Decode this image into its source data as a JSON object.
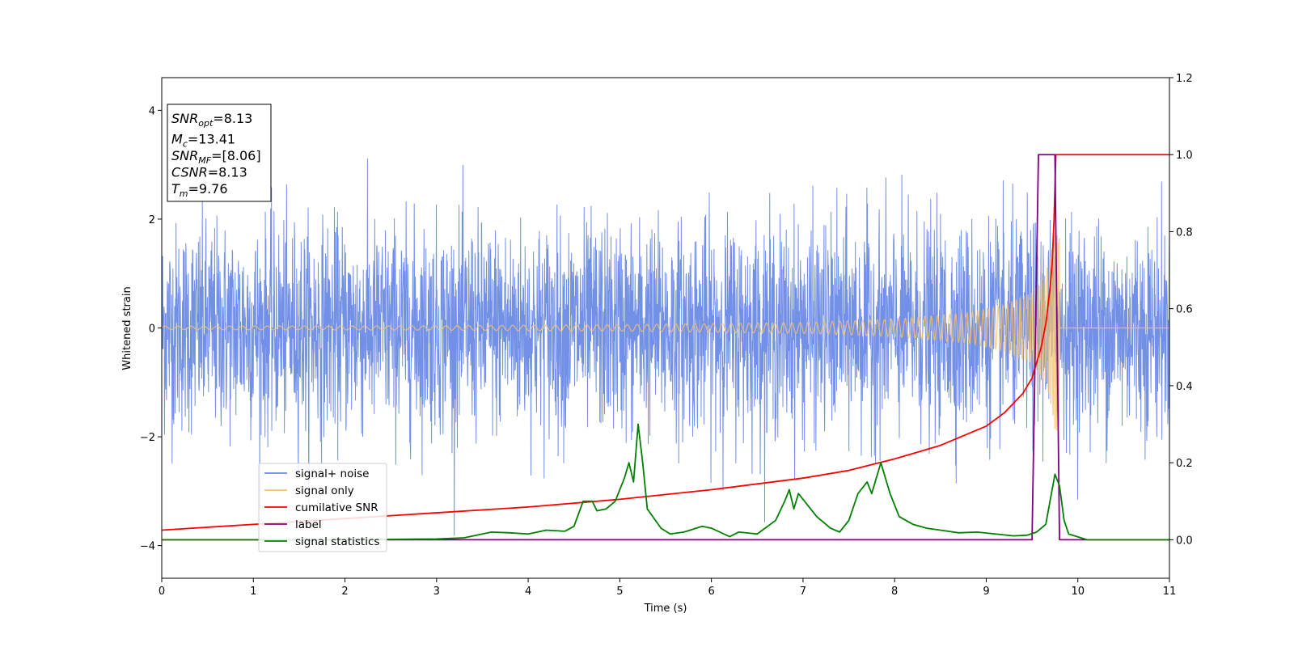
{
  "chart_data": {
    "type": "line",
    "xlabel": "Time (s)",
    "ylabel": "Whitened strain",
    "xlim": [
      0,
      11
    ],
    "ylim": [
      -4.6,
      4.6
    ],
    "y2lim": [
      -0.1,
      1.2
    ],
    "x_ticks": [
      "0",
      "1",
      "2",
      "3",
      "4",
      "5",
      "6",
      "7",
      "8",
      "9",
      "10",
      "11"
    ],
    "y_ticks": [
      "4",
      "2",
      "0",
      "−2",
      "−4"
    ],
    "y_tick_values": [
      4,
      2,
      0,
      -2,
      -4
    ],
    "y2_ticks": [
      "1.2",
      "1.0",
      "0.8",
      "0.6",
      "0.4",
      "0.2",
      "0.0"
    ],
    "y2_tick_values": [
      1.2,
      1.0,
      0.8,
      0.6,
      0.4,
      0.2,
      0.0
    ],
    "grid": false,
    "legend_position": "lower-left",
    "info_box": {
      "lines": [
        {
          "base": "SNR",
          "sub": "opt",
          "value": "=8.13"
        },
        {
          "base": "M",
          "sub": "c",
          "value": "=13.41"
        },
        {
          "base": "SNR",
          "sub": "MF",
          "value": "=[8.06]"
        },
        {
          "base": "CSNR",
          "sub": "",
          "value": "=8.13"
        },
        {
          "base": "T",
          "sub": "m",
          "value": "=9.76"
        }
      ]
    },
    "series": [
      {
        "name": "signal+ noise",
        "axis": "left",
        "color": "#6b8ae6",
        "kind": "noise",
        "approx_std": 0.95,
        "approx_extremes": {
          "max": 4.05,
          "min": -4.15
        }
      },
      {
        "name": "signal only",
        "axis": "left",
        "color": "#f5c26b",
        "kind": "chirp",
        "merger_time": 9.76,
        "end_time": 9.8,
        "envelope": [
          [
            0,
            0.03
          ],
          [
            3,
            0.04
          ],
          [
            5,
            0.06
          ],
          [
            7,
            0.1
          ],
          [
            8,
            0.16
          ],
          [
            8.8,
            0.28
          ],
          [
            9.2,
            0.42
          ],
          [
            9.5,
            0.65
          ],
          [
            9.65,
            1.0
          ],
          [
            9.72,
            1.5
          ],
          [
            9.76,
            2.0
          ],
          [
            9.78,
            1.7
          ]
        ]
      },
      {
        "name": "cumilative SNR",
        "axis": "right",
        "color": "#ff0000",
        "points": [
          [
            0,
            0.025
          ],
          [
            1,
            0.04
          ],
          [
            2,
            0.055
          ],
          [
            3,
            0.07
          ],
          [
            4,
            0.085
          ],
          [
            5,
            0.105
          ],
          [
            6,
            0.13
          ],
          [
            7,
            0.16
          ],
          [
            7.5,
            0.18
          ],
          [
            8,
            0.21
          ],
          [
            8.5,
            0.245
          ],
          [
            9,
            0.295
          ],
          [
            9.2,
            0.33
          ],
          [
            9.4,
            0.38
          ],
          [
            9.5,
            0.42
          ],
          [
            9.6,
            0.5
          ],
          [
            9.65,
            0.56
          ],
          [
            9.7,
            0.66
          ],
          [
            9.72,
            0.72
          ],
          [
            9.74,
            0.83
          ],
          [
            9.76,
            1.0
          ],
          [
            11,
            1.0
          ]
        ]
      },
      {
        "name": "label",
        "axis": "right",
        "color": "#800080",
        "points": [
          [
            0,
            0.0
          ],
          [
            9.5,
            0.0
          ],
          [
            9.57,
            1.0
          ],
          [
            9.75,
            1.0
          ],
          [
            9.8,
            0.0
          ],
          [
            11,
            0.0
          ]
        ]
      },
      {
        "name": "signal statistics",
        "axis": "right",
        "color": "#008000",
        "points": [
          [
            0,
            0.0
          ],
          [
            1,
            0.0
          ],
          [
            2,
            0.0
          ],
          [
            3,
            0.002
          ],
          [
            3.3,
            0.005
          ],
          [
            3.6,
            0.02
          ],
          [
            3.8,
            0.018
          ],
          [
            4.0,
            0.015
          ],
          [
            4.2,
            0.025
          ],
          [
            4.4,
            0.022
          ],
          [
            4.5,
            0.035
          ],
          [
            4.6,
            0.1
          ],
          [
            4.7,
            0.1
          ],
          [
            4.75,
            0.075
          ],
          [
            4.85,
            0.08
          ],
          [
            4.95,
            0.1
          ],
          [
            5.05,
            0.16
          ],
          [
            5.1,
            0.2
          ],
          [
            5.15,
            0.15
          ],
          [
            5.2,
            0.3
          ],
          [
            5.25,
            0.2
          ],
          [
            5.3,
            0.08
          ],
          [
            5.45,
            0.03
          ],
          [
            5.55,
            0.015
          ],
          [
            5.7,
            0.02
          ],
          [
            5.9,
            0.035
          ],
          [
            6.0,
            0.03
          ],
          [
            6.2,
            0.008
          ],
          [
            6.3,
            0.02
          ],
          [
            6.5,
            0.015
          ],
          [
            6.7,
            0.05
          ],
          [
            6.8,
            0.1
          ],
          [
            6.85,
            0.13
          ],
          [
            6.9,
            0.08
          ],
          [
            6.95,
            0.12
          ],
          [
            7.05,
            0.09
          ],
          [
            7.15,
            0.06
          ],
          [
            7.3,
            0.03
          ],
          [
            7.4,
            0.02
          ],
          [
            7.5,
            0.05
          ],
          [
            7.6,
            0.12
          ],
          [
            7.7,
            0.15
          ],
          [
            7.75,
            0.12
          ],
          [
            7.85,
            0.2
          ],
          [
            7.9,
            0.16
          ],
          [
            7.95,
            0.12
          ],
          [
            8.05,
            0.06
          ],
          [
            8.2,
            0.04
          ],
          [
            8.35,
            0.03
          ],
          [
            8.5,
            0.025
          ],
          [
            8.7,
            0.018
          ],
          [
            8.9,
            0.02
          ],
          [
            9.1,
            0.015
          ],
          [
            9.3,
            0.01
          ],
          [
            9.45,
            0.012
          ],
          [
            9.55,
            0.02
          ],
          [
            9.65,
            0.04
          ],
          [
            9.75,
            0.17
          ],
          [
            9.8,
            0.14
          ],
          [
            9.85,
            0.05
          ],
          [
            9.9,
            0.015
          ],
          [
            10.1,
            0.0
          ],
          [
            11,
            0.0
          ]
        ]
      }
    ]
  }
}
